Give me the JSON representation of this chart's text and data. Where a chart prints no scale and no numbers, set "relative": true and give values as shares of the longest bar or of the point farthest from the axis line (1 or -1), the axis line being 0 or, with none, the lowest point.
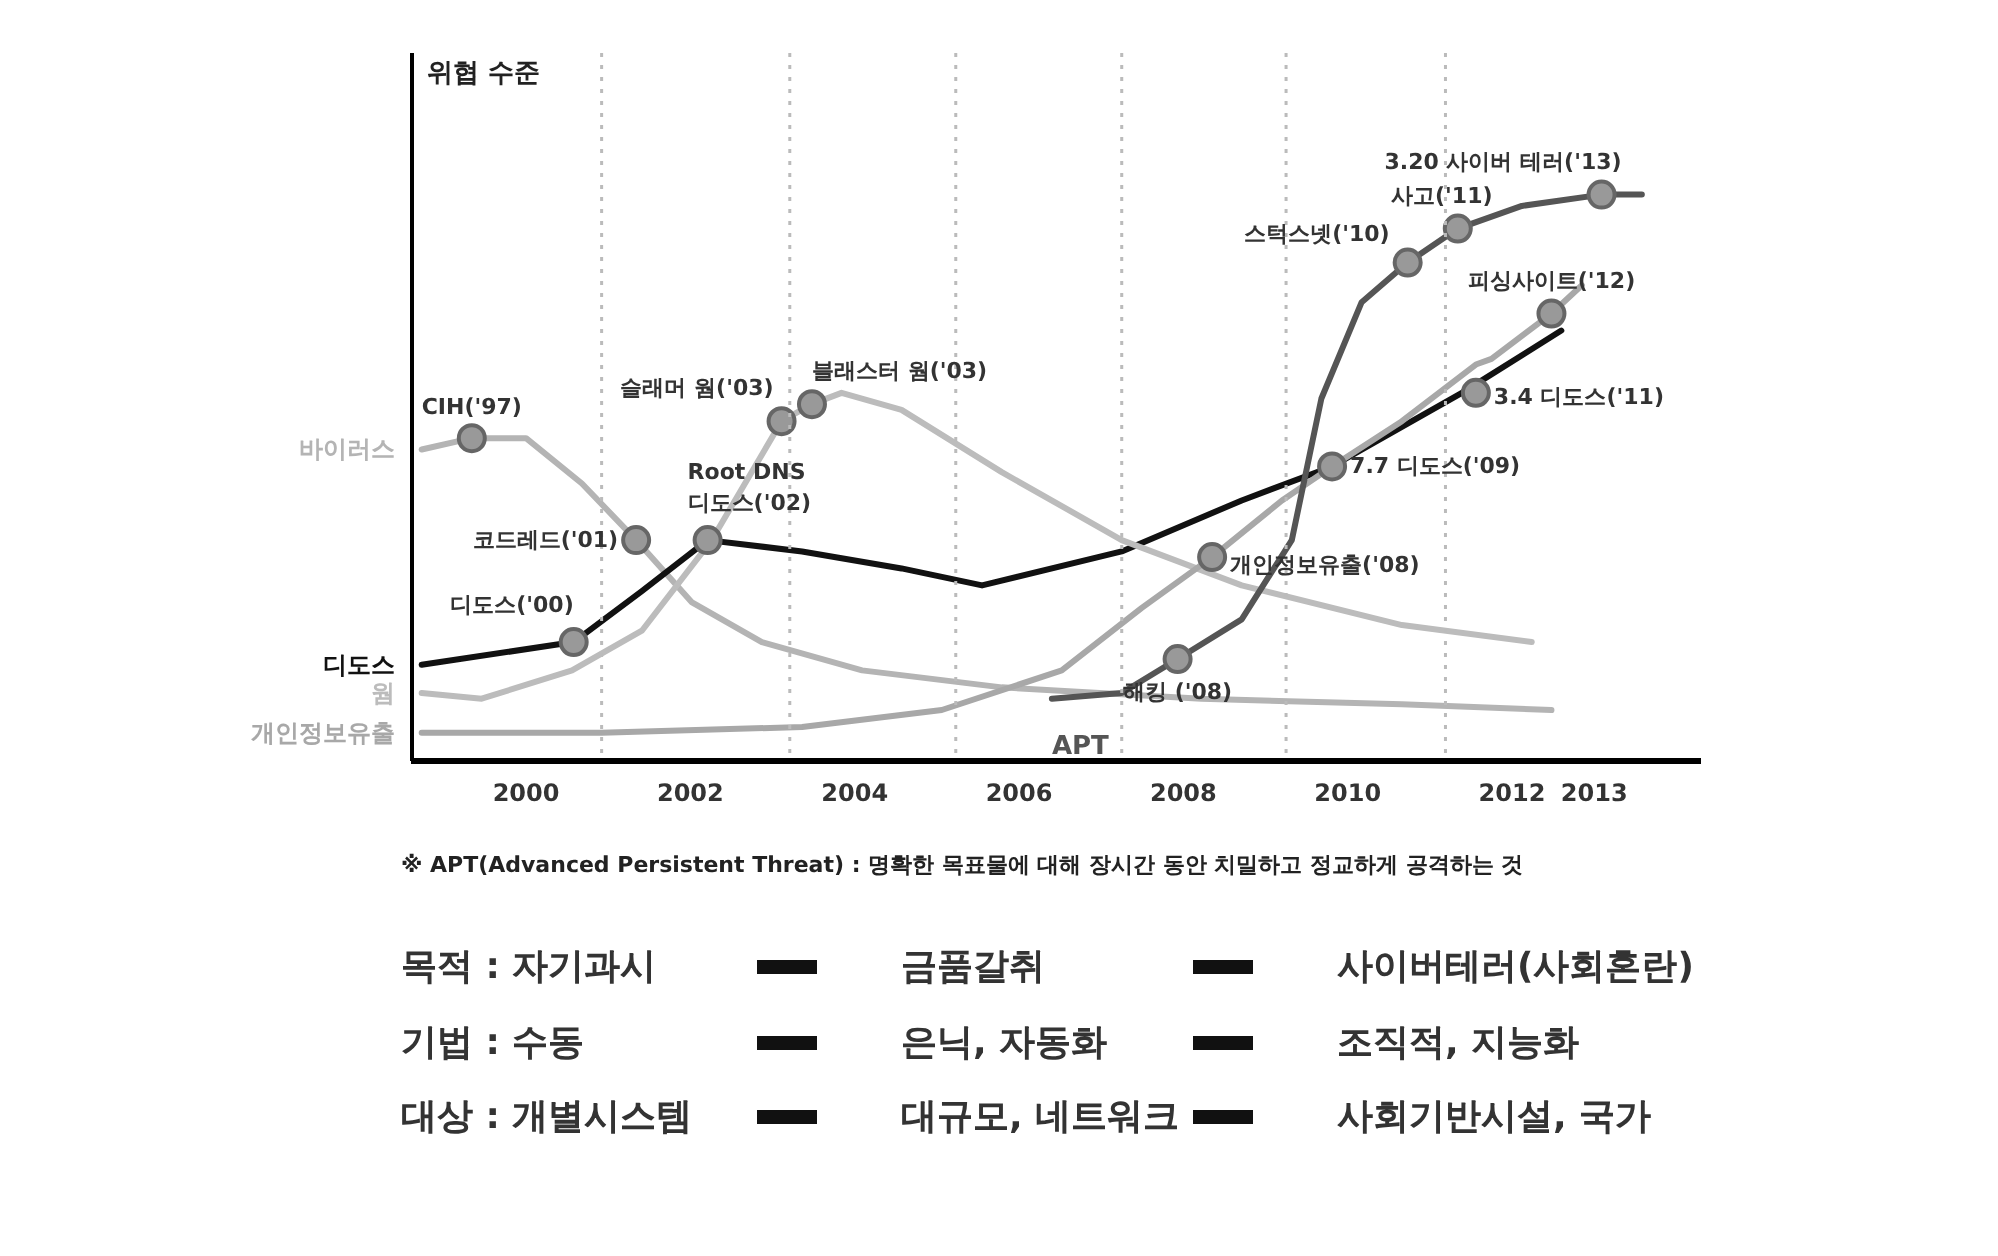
{
  "chart_data": {
    "type": "line",
    "relative": true,
    "ylabel": "위협 수준",
    "xlim": [
      1998.6,
      2014.3
    ],
    "xticks": [
      2000,
      2002,
      2004,
      2006,
      2008,
      2010,
      2012,
      2013
    ],
    "series": [
      {
        "name": "바이러스",
        "color": "#b4b4b4",
        "x": [
          1998.73,
          1999.34,
          2000,
          2000.68,
          2001.34,
          2002.02,
          2002.87,
          2004.09,
          2005.79,
          2008.22,
          2010.66,
          2012.48
        ],
        "values": [
          0.55,
          0.57,
          0.57,
          0.49,
          0.39,
          0.28,
          0.21,
          0.16,
          0.13,
          0.11,
          0.1,
          0.09
        ]
      },
      {
        "name": "디도스",
        "color": "#111111",
        "x": [
          1998.73,
          2000.58,
          2001.41,
          2002.21,
          2003.36,
          2004.57,
          2005.55,
          2007.25,
          2008.71,
          2009.81,
          2011.39,
          2012.6
        ],
        "values": [
          0.17,
          0.21,
          0.3,
          0.39,
          0.37,
          0.34,
          0.31,
          0.37,
          0.46,
          0.52,
          0.65,
          0.76
        ]
      },
      {
        "name": "웜",
        "color": "#bcbcbc",
        "x": [
          1998.73,
          1999.46,
          2000.56,
          2001.41,
          2002.26,
          2003.11,
          2003.48,
          2003.84,
          2004.57,
          2005.79,
          2007.25,
          2008.71,
          2010.66,
          2012.24
        ],
        "values": [
          0.12,
          0.11,
          0.16,
          0.23,
          0.39,
          0.6,
          0.63,
          0.65,
          0.62,
          0.51,
          0.39,
          0.31,
          0.24,
          0.21
        ]
      },
      {
        "name": "개인정보유출",
        "color": "#a8a8a8",
        "x": [
          1998.73,
          2000.92,
          2003.36,
          2005.06,
          2006.52,
          2007.49,
          2008.35,
          2009.2,
          2009.81,
          2010.66,
          2011.56,
          2011.75,
          2012.48,
          2012.85
        ],
        "values": [
          0.05,
          0.05,
          0.06,
          0.09,
          0.16,
          0.27,
          0.36,
          0.46,
          0.52,
          0.6,
          0.7,
          0.71,
          0.79,
          0.84
        ]
      },
      {
        "name": "APT",
        "color": "#555555",
        "x": [
          2006.4,
          2007.25,
          2007.93,
          2008.71,
          2009.32,
          2009.68,
          2010.17,
          2010.73,
          2011.34,
          2012.12,
          2013.09,
          2013.58
        ],
        "values": [
          0.11,
          0.12,
          0.18,
          0.25,
          0.39,
          0.64,
          0.81,
          0.88,
          0.94,
          0.98,
          1.0,
          1.0
        ]
      }
    ],
    "ref_lines": [
      {
        "axis": "x",
        "value": 2000.92,
        "color": "#bbbbbb",
        "line_style": "dotted"
      },
      {
        "axis": "x",
        "value": 2003.21,
        "color": "#bbbbbb",
        "line_style": "dotted"
      },
      {
        "axis": "x",
        "value": 2005.23,
        "color": "#bbbbbb",
        "line_style": "dotted"
      },
      {
        "axis": "x",
        "value": 2007.25,
        "color": "#bbbbbb",
        "line_style": "dotted"
      },
      {
        "axis": "x",
        "value": 2009.25,
        "color": "#bbbbbb",
        "line_style": "dotted"
      },
      {
        "axis": "x",
        "value": 2011.19,
        "color": "#bbbbbb",
        "line_style": "dotted"
      }
    ],
    "annotations": [
      {
        "text": "CIH('97)",
        "x": 1999.34,
        "y": 0.57
      },
      {
        "text": "코드레드('01)",
        "x": 2001.34,
        "y": 0.39
      },
      {
        "text": "디도스('00)",
        "x": 2000.58,
        "y": 0.21
      },
      {
        "text": "Root DNS\n디도스('02)",
        "x": 2002.21,
        "y": 0.39
      },
      {
        "text": "슬래머 웜('03)",
        "x": 2003.11,
        "y": 0.6
      },
      {
        "text": "블래스터 웜('03)",
        "x": 2003.48,
        "y": 0.63
      },
      {
        "text": "개인정보유출('08)",
        "x": 2008.35,
        "y": 0.36
      },
      {
        "text": "해킹 ('08)",
        "x": 2007.93,
        "y": 0.18
      },
      {
        "text": "7.7 디도스('09)",
        "x": 2009.81,
        "y": 0.52
      },
      {
        "text": "스턱스넷('10)",
        "x": 2010.73,
        "y": 0.88
      },
      {
        "text": "사고('11)",
        "x": 2011.34,
        "y": 0.94
      },
      {
        "text": "3.4 디도스('11)",
        "x": 2011.56,
        "y": 0.65
      },
      {
        "text": "피싱사이트('12)",
        "x": 2012.48,
        "y": 0.79
      },
      {
        "text": "3.20 사이버 테러('13)",
        "x": 2013.09,
        "y": 1.0
      },
      "※ APT(Advanced Persistent Threat) : 명확한 목표물에 대해 장시간 동안 치밀하고 정교하게 공격하는 것",
      "목적 : 자기과시",
      "금품갈취",
      "사이버테러(사회혼란)",
      "기법 : 수동",
      "은닉, 자동화",
      "조직적, 지능화",
      "대상 : 개별시스템",
      "대규모, 네트워크",
      "사회기반시설, 국가"
    ]
  }
}
